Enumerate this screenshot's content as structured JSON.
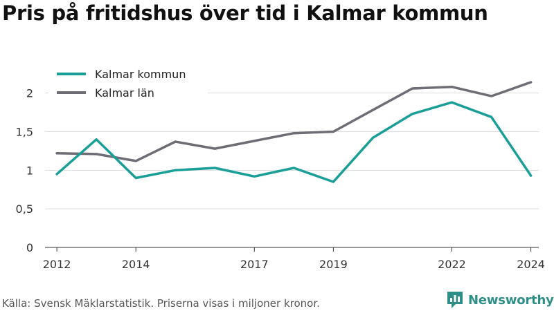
{
  "title": "Pris på fritidshus över tid i Kalmar kommun",
  "source": "Källa: Svensk Mäklarstatistik. Priserna visas i miljoner kronor.",
  "brand": {
    "name": "Newsworthy",
    "icon": "bar-chart-logo-icon",
    "color": "#2d8f88"
  },
  "chart_data": {
    "type": "line",
    "title": "Pris på fritidshus över tid i Kalmar kommun",
    "xlabel": "",
    "ylabel": "",
    "x": [
      2012,
      2013,
      2014,
      2015,
      2016,
      2017,
      2018,
      2019,
      2020,
      2021,
      2022,
      2023,
      2024
    ],
    "xticks": [
      "2012",
      "2014",
      "2017",
      "2019",
      "2022",
      "2024"
    ],
    "xtick_values": [
      2012,
      2014,
      2017,
      2019,
      2022,
      2024
    ],
    "yticks": [
      "0",
      "0,5",
      "1",
      "1,5",
      "2"
    ],
    "ytick_values": [
      0,
      0.5,
      1,
      1.5,
      2
    ],
    "ylim": [
      0,
      2.4
    ],
    "xlim": [
      2011.7,
      2024.2
    ],
    "grid": true,
    "legend_position": "top-left",
    "series": [
      {
        "name": "Kalmar kommun",
        "color": "#1a9e98",
        "values": [
          0.95,
          1.4,
          0.9,
          1.0,
          1.03,
          0.92,
          1.03,
          0.85,
          1.42,
          1.73,
          1.88,
          1.69,
          0.93
        ]
      },
      {
        "name": "Kalmar län",
        "color": "#6e6c75",
        "values": [
          1.22,
          1.21,
          1.12,
          1.37,
          1.28,
          1.38,
          1.48,
          1.5,
          1.78,
          2.06,
          2.08,
          1.96,
          2.14
        ]
      }
    ]
  }
}
